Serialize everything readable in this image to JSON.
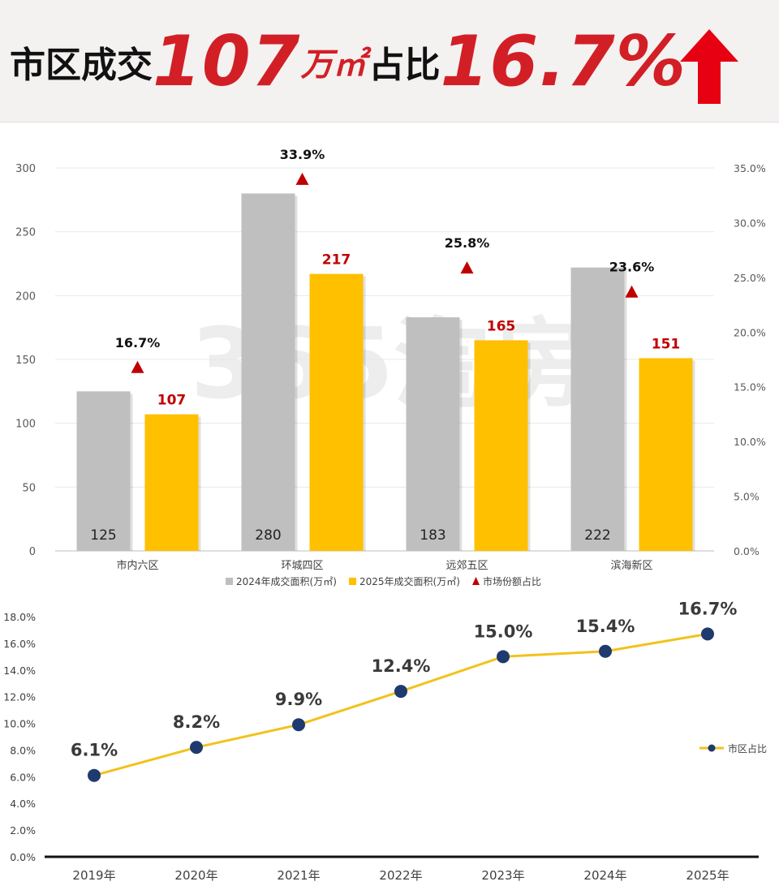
{
  "header": {
    "title_part1": "市区成交",
    "title_value": "107",
    "title_unit": "万㎡",
    "title_part2": "占比",
    "title_percent": "16.7%",
    "colors": {
      "accent": "#d21f26",
      "text": "#111111"
    },
    "trend_icon": "up-arrow-icon"
  },
  "watermark": "365淘房",
  "chart_data": [
    {
      "type": "bar",
      "categories": [
        "市内六区",
        "环城四区",
        "远郊五区",
        "滨海新区"
      ],
      "series": [
        {
          "name": "2024年成交面积(万㎡)",
          "values": [
            125,
            280,
            183,
            222
          ],
          "color": "#bfbfbf",
          "axis": "left"
        },
        {
          "name": "2025年成交面积(万㎡)",
          "values": [
            107,
            217,
            165,
            151
          ],
          "color": "#ffc000",
          "axis": "left"
        },
        {
          "name": "市场份额占比",
          "values": [
            16.7,
            33.9,
            25.8,
            23.6
          ],
          "color": "#c00000",
          "axis": "right",
          "marker": "triangle"
        }
      ],
      "bar_labels_2024": [
        "125",
        "280",
        "183",
        "222"
      ],
      "bar_labels_2025": [
        "107",
        "217",
        "165",
        "151"
      ],
      "share_labels": [
        "16.7%",
        "33.9%",
        "25.8%",
        "23.6%"
      ],
      "y_left": {
        "ylim": [
          0,
          300
        ],
        "ticks": [
          "0",
          "50",
          "100",
          "150",
          "200",
          "250",
          "300"
        ]
      },
      "y_right": {
        "ylim": [
          0,
          35
        ],
        "ticks": [
          "0.0%",
          "5.0%",
          "10.0%",
          "15.0%",
          "20.0%",
          "25.0%",
          "30.0%",
          "35.0%"
        ]
      },
      "grid": true,
      "legend": "bottom"
    },
    {
      "type": "line",
      "categories": [
        "2019年",
        "2020年",
        "2021年",
        "2022年",
        "2023年",
        "2024年",
        "2025年"
      ],
      "series": [
        {
          "name": "市区占比",
          "values": [
            6.1,
            8.2,
            9.9,
            12.4,
            15.0,
            15.4,
            16.7
          ],
          "color": "#f2c21b",
          "marker_color": "#1f3a6e"
        }
      ],
      "point_labels": [
        "6.1%",
        "8.2%",
        "9.9%",
        "12.4%",
        "15.0%",
        "15.4%",
        "16.7%"
      ],
      "y": {
        "ylim": [
          0,
          18
        ],
        "ticks": [
          "0.0%",
          "2.0%",
          "4.0%",
          "6.0%",
          "8.0%",
          "10.0%",
          "12.0%",
          "14.0%",
          "16.0%",
          "18.0%"
        ]
      },
      "grid": false,
      "legend": "right"
    }
  ]
}
